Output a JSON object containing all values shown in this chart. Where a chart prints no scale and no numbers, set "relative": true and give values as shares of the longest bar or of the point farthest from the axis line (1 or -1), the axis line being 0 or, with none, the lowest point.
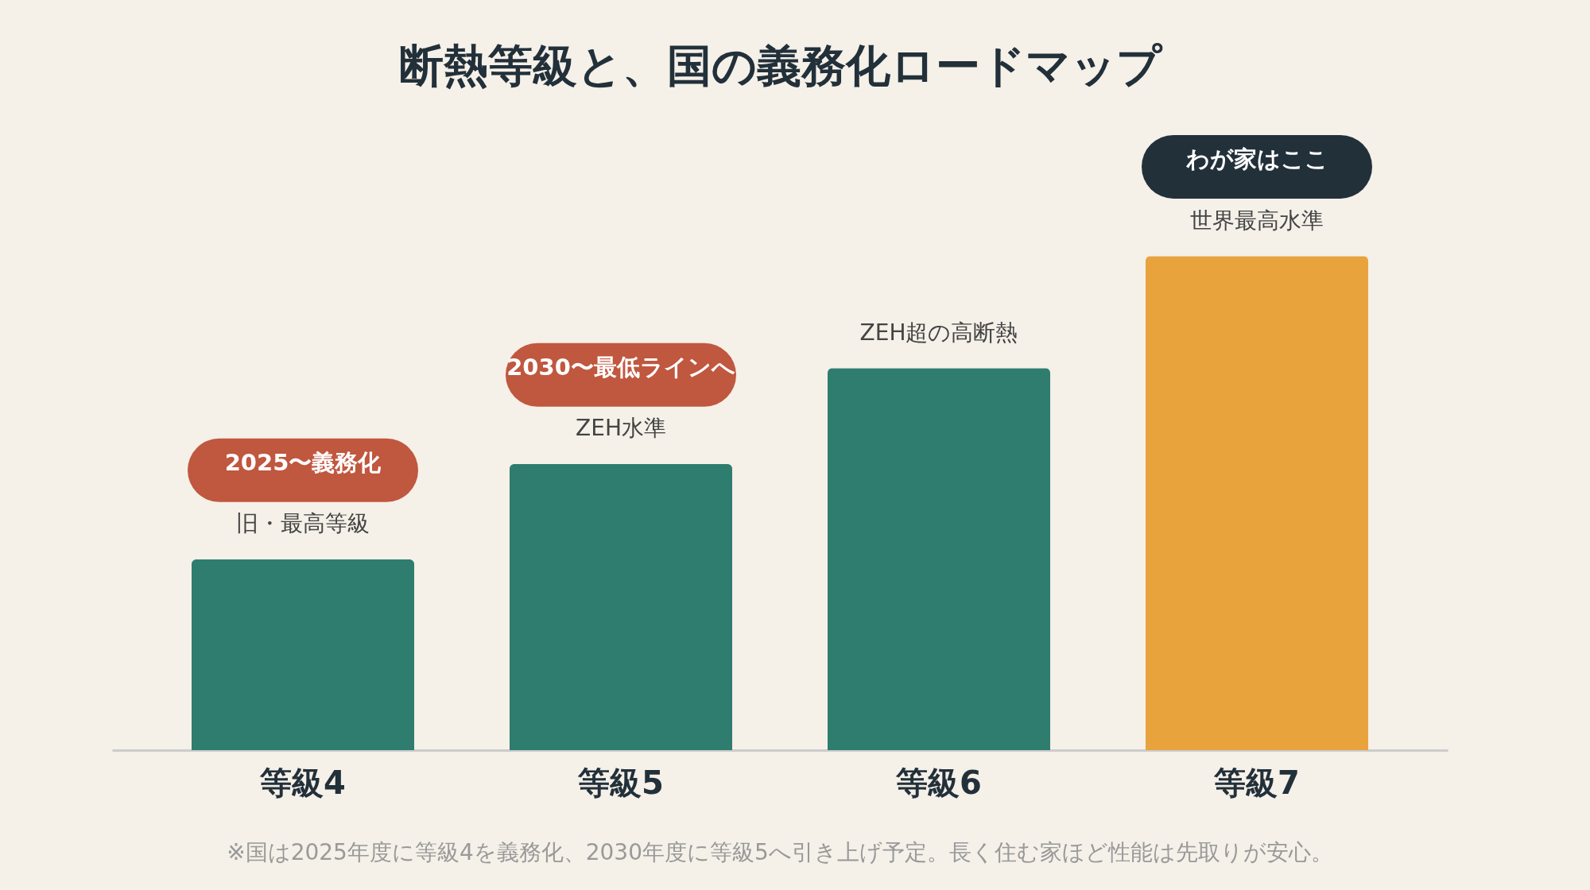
{
  "chart_data": {
    "type": "bar",
    "title": "断熱等級と、国の義務化ロードマップ",
    "categories": [
      "等級4",
      "等級5",
      "等級6",
      "等級7"
    ],
    "values": [
      0.386,
      0.579,
      0.773,
      1
    ],
    "colors": [
      "#2e7d6f",
      "#2e7d6f",
      "#2e7d6f",
      "#e8a33d"
    ],
    "relative": true,
    "annotations": [
      "旧・最高等級",
      "2025〜義務化",
      "ZEH水準",
      "2030〜最低ラインへ",
      "ZEH超の高断熱",
      "世界最高水準",
      "わが家はここ",
      "※国は2025年度に等級4を義務化、2030年度に等級5へ引き上げ予定。長く住む家ほど性能は先取りが安心。"
    ]
  }
}
